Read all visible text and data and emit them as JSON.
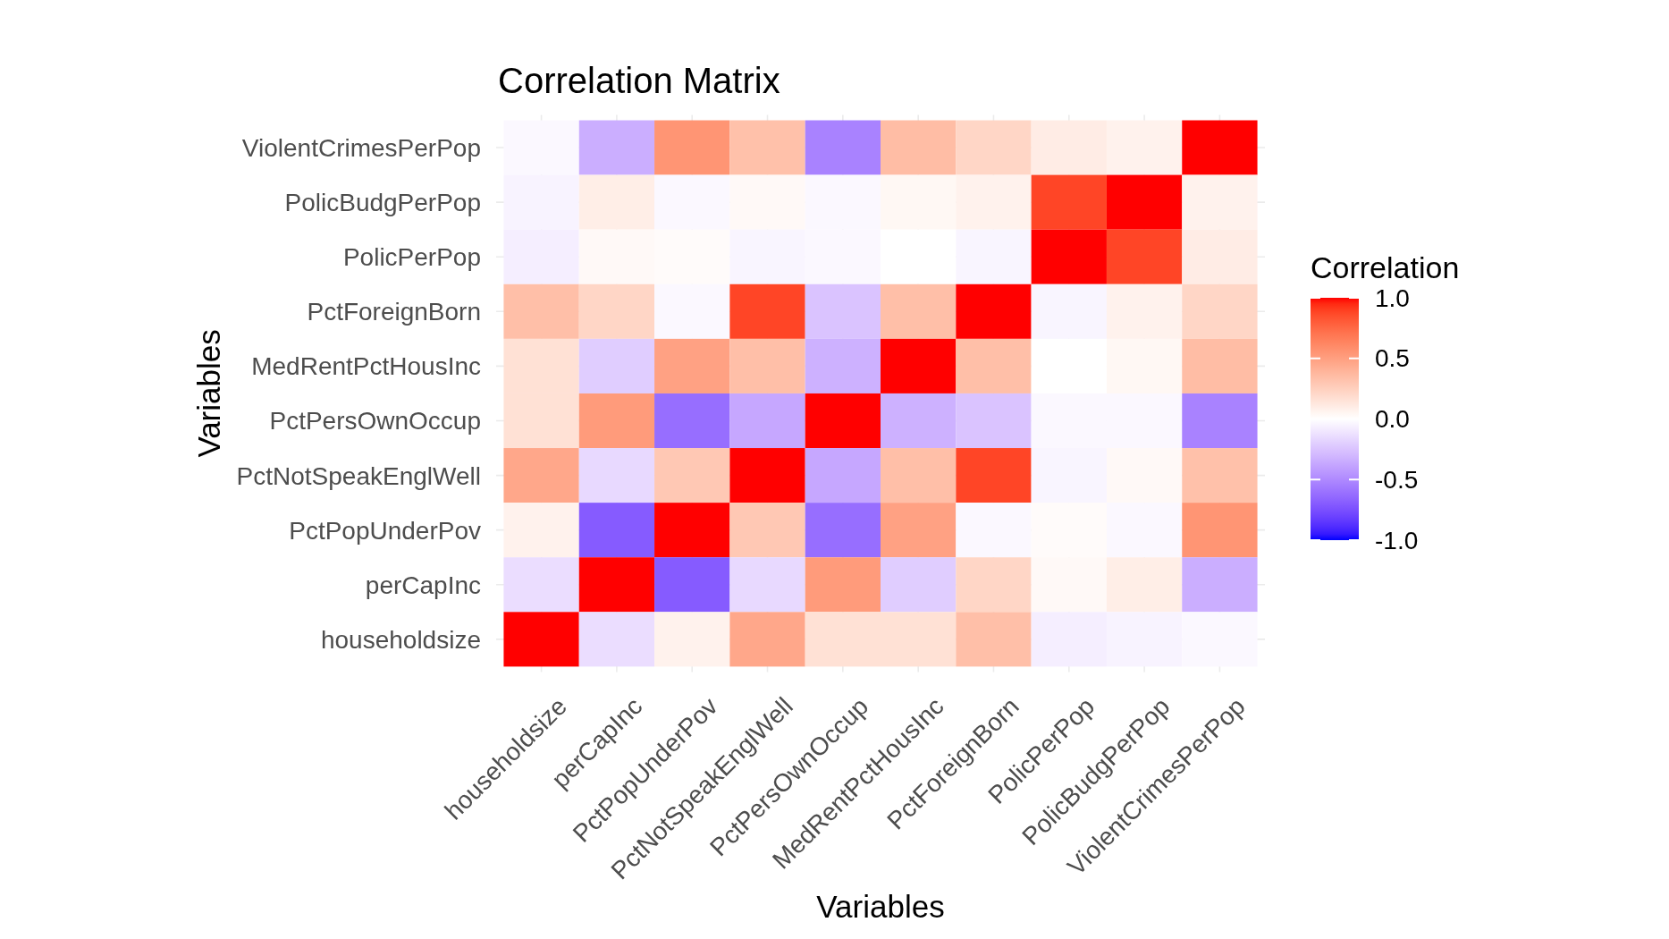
{
  "chart_data": {
    "type": "heatmap",
    "title": "Correlation Matrix",
    "xlabel": "Variables",
    "ylabel": "Variables",
    "clabel": "Correlation",
    "categories": [
      "householdsize",
      "perCapInc",
      "PctPopUnderPov",
      "PctNotSpeakEnglWell",
      "PctPersOwnOccup",
      "MedRentPctHousInc",
      "PctForeignBorn",
      "PolicPerPop",
      "PolicBudgPerPop",
      "ViolentCrimesPerPop"
    ],
    "y_categories": [
      "ViolentCrimesPerPop",
      "PolicBudgPerPop",
      "PolicPerPop",
      "PctForeignBorn",
      "MedRentPctHousInc",
      "PctPersOwnOccup",
      "PctNotSpeakEnglWell",
      "PctPopUnderPov",
      "perCapInc",
      "householdsize"
    ],
    "cells": [
      [
        -0.03,
        -0.34,
        0.55,
        0.33,
        -0.53,
        0.35,
        0.22,
        0.1,
        0.07,
        1
      ],
      [
        -0.05,
        0.09,
        -0.03,
        0.03,
        -0.03,
        0.04,
        0.07,
        0.88,
        1,
        0.07
      ],
      [
        -0.07,
        0.03,
        0.02,
        -0.04,
        -0.03,
        0,
        -0.04,
        1,
        0.88,
        0.1
      ],
      [
        0.34,
        0.22,
        -0.03,
        0.88,
        -0.25,
        0.34,
        1,
        -0.04,
        0.07,
        0.22
      ],
      [
        0.16,
        -0.21,
        0.49,
        0.34,
        -0.33,
        1,
        0.34,
        0,
        0.04,
        0.35
      ],
      [
        0.16,
        0.52,
        -0.62,
        -0.37,
        1,
        -0.33,
        -0.25,
        -0.03,
        -0.03,
        -0.53
      ],
      [
        0.46,
        -0.16,
        0.29,
        1,
        -0.37,
        0.34,
        0.88,
        -0.04,
        0.03,
        0.33
      ],
      [
        0.07,
        -0.7,
        1,
        0.29,
        -0.62,
        0.49,
        -0.03,
        0.02,
        -0.03,
        0.55
      ],
      [
        -0.14,
        1,
        -0.7,
        -0.16,
        0.52,
        -0.21,
        0.22,
        0.03,
        0.09,
        -0.34
      ],
      [
        1,
        -0.14,
        0.07,
        0.46,
        0.16,
        0.16,
        0.34,
        -0.07,
        -0.05,
        -0.03
      ]
    ],
    "clim": [
      -1,
      1
    ],
    "cticks": [
      {
        "value": -1,
        "label": "-1.0"
      },
      {
        "value": -0.5,
        "label": "-0.5"
      },
      {
        "value": 0,
        "label": "0.0"
      },
      {
        "value": 0.5,
        "label": "0.5"
      },
      {
        "value": 1,
        "label": "1.0"
      }
    ],
    "grid": true
  }
}
